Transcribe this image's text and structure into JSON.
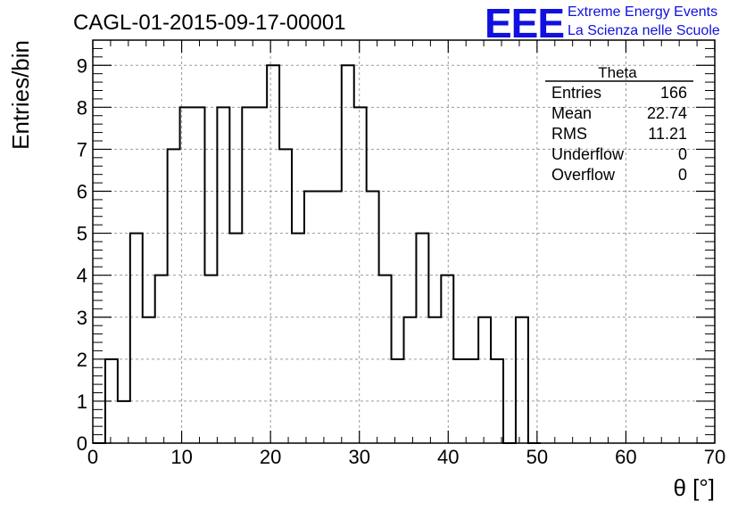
{
  "chart_data": {
    "type": "histogram",
    "title": "CAGL-01-2015-09-17-00001",
    "xlabel": "θ [°]",
    "ylabel": "Entries/bin",
    "xlim": [
      0,
      70
    ],
    "ylim": [
      0,
      9.6
    ],
    "xticks": [
      "0",
      "10",
      "20",
      "30",
      "40",
      "50",
      "60",
      "70"
    ],
    "yticks": [
      "0",
      "1",
      "2",
      "3",
      "4",
      "5",
      "6",
      "7",
      "8",
      "9"
    ],
    "grid": true,
    "bin_width": 1.4,
    "bin_start": 0,
    "values": [
      0,
      2,
      1,
      5,
      3,
      4,
      7,
      8,
      8,
      4,
      8,
      5,
      8,
      8,
      9,
      7,
      5,
      6,
      6,
      6,
      9,
      8,
      6,
      4,
      2,
      3,
      5,
      3,
      4,
      2,
      2,
      3,
      2,
      0,
      3,
      0
    ],
    "stats_box": {
      "title": "Theta",
      "rows": [
        {
          "label": "Entries",
          "value": "166"
        },
        {
          "label": "Mean",
          "value": "22.74"
        },
        {
          "label": "RMS",
          "value": "11.21"
        },
        {
          "label": "Underflow",
          "value": "0"
        },
        {
          "label": "Overflow",
          "value": "0"
        }
      ]
    }
  },
  "logo": {
    "text": "EEE",
    "line1": "Extreme Energy Events",
    "line2": "La Scienza nelle Scuole",
    "color": "#1010e0"
  }
}
